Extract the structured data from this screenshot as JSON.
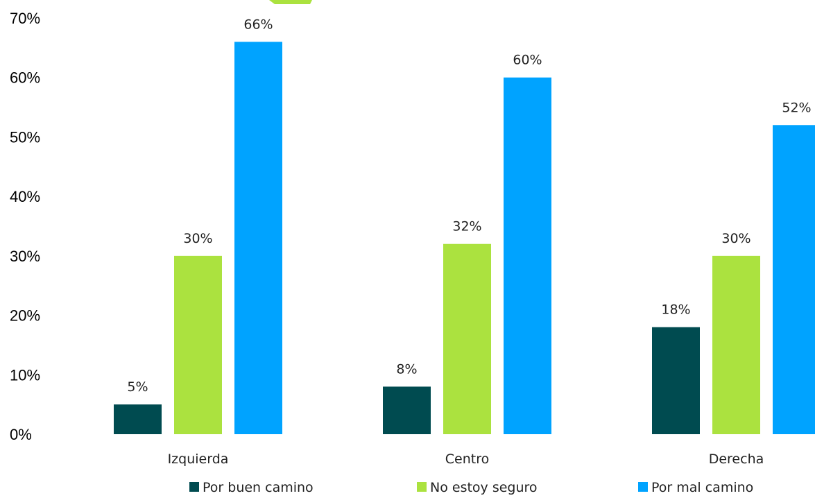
{
  "chart_data": {
    "type": "bar",
    "categories": [
      "Izquierda",
      "Centro",
      "Derecha"
    ],
    "series": [
      {
        "name": "Por buen camino",
        "color": "#004b50",
        "values": [
          5,
          8,
          18
        ],
        "labels": [
          "5%",
          "8%",
          "18%"
        ]
      },
      {
        "name": "No estoy seguro",
        "color": "#abe23f",
        "values": [
          30,
          32,
          30
        ],
        "labels": [
          "30%",
          "32%",
          "30%"
        ]
      },
      {
        "name": "Por mal camino",
        "color": "#00a3ff",
        "values": [
          66,
          60,
          52
        ],
        "labels": [
          "66%",
          "60%",
          "52%"
        ]
      }
    ],
    "ylim": [
      0,
      70
    ],
    "yticks": [
      0,
      10,
      20,
      30,
      40,
      50,
      60,
      70
    ],
    "ytick_labels": [
      "0%",
      "10%",
      "20%",
      "30%",
      "40%",
      "50%",
      "60%",
      "70%"
    ],
    "grid": false,
    "legend_position": "bottom",
    "title": "",
    "xlabel": "",
    "ylabel": ""
  }
}
